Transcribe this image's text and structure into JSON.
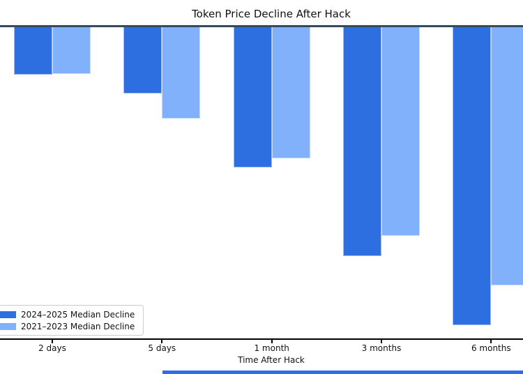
{
  "chart_data": {
    "type": "bar",
    "title": "Token Price Decline After Hack",
    "xlabel": "Time After Hack",
    "ylabel": "",
    "categories": [
      "2 days",
      "5 days",
      "1 month",
      "3 months",
      "6 months"
    ],
    "series": [
      {
        "name": "2024–2025 Median Decline",
        "color": "#2d6ee0",
        "values": [
          -15.5,
          -21.7,
          -45.2,
          -73.5,
          -95.5
        ]
      },
      {
        "name": "2021–2023 Median Decline",
        "color": "#80b1fa",
        "values": [
          -15.3,
          -29.6,
          -42.4,
          -67.1,
          -82.9
        ]
      }
    ],
    "ylim": [
      0,
      -100
    ],
    "unit": "percent",
    "grid": false,
    "legend_position": "lower left",
    "bars_hang_from_zero_line_at_top": true,
    "y_axis_cropped_off_left_edge": true
  },
  "colors": {
    "zero_line": "#334a5f",
    "axis_line": "#000000",
    "background": "#ffffff",
    "cropped_bar_strip": "#2d6ee0"
  }
}
